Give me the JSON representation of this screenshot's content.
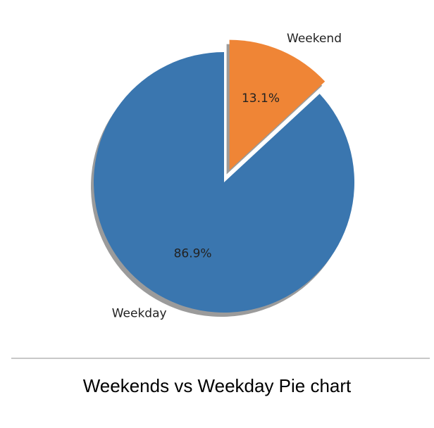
{
  "chart_data": {
    "type": "pie",
    "categories": [
      "Weekday",
      "Weekend"
    ],
    "values": [
      86.9,
      13.1
    ],
    "percent_labels": [
      "86.9%",
      "13.1%"
    ],
    "colors": [
      "#3a76af",
      "#ef8536"
    ],
    "exploded": [
      false,
      true
    ],
    "shadow": true,
    "start_angle_deg": 90,
    "direction": "counterclockwise",
    "title": "",
    "legend": false
  },
  "caption": "Weekends vs Weekday Pie chart"
}
